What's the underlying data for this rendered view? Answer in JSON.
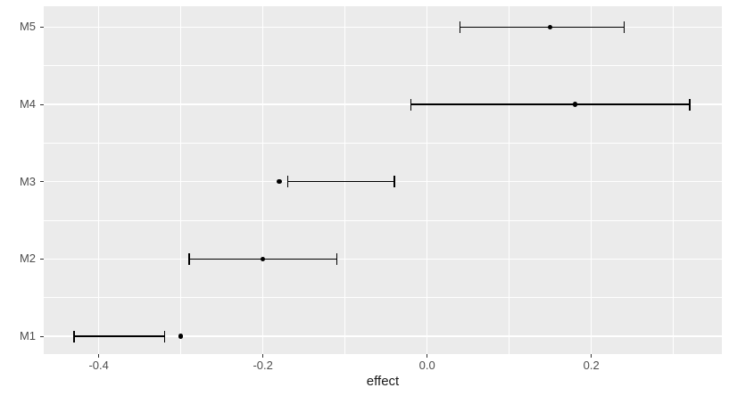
{
  "figure": {
    "background_color": "#FFFFFF",
    "panel_background_color": "#EBEBEB",
    "gridline_color": "#FFFFFF",
    "axis_text_color": "#4D4D4D",
    "axis_title_color": "#1A1A1A",
    "tick_mark_color": "#333333",
    "data_color": "#000000"
  },
  "chart_data": {
    "type": "scatter",
    "subtype": "pointrange-forest-plot",
    "title": "",
    "xlabel": "effect",
    "ylabel": "",
    "grid": "on",
    "legend": "none",
    "categories": [
      "M5",
      "M4",
      "M3",
      "M2",
      "M1"
    ],
    "series": [
      {
        "label": "M5",
        "y": 5,
        "estimate": 0.15,
        "ci_low": 0.04,
        "ci_high": 0.24
      },
      {
        "label": "M4",
        "y": 4,
        "estimate": 0.18,
        "ci_low": -0.02,
        "ci_high": 0.32
      },
      {
        "label": "M3",
        "y": 3,
        "estimate": -0.18,
        "ci_low": -0.17,
        "ci_high": -0.04
      },
      {
        "label": "M2",
        "y": 2,
        "estimate": -0.2,
        "ci_low": -0.29,
        "ci_high": -0.11
      },
      {
        "label": "M1",
        "y": 1,
        "estimate": -0.3,
        "ci_low": -0.43,
        "ci_high": -0.32
      }
    ],
    "x_axis": {
      "ticks": [
        {
          "value": -0.4,
          "label": "-0.4"
        },
        {
          "value": -0.2,
          "label": "-0.2"
        },
        {
          "value": 0.0,
          "label": "0.0"
        },
        {
          "value": 0.2,
          "label": "0.2"
        }
      ],
      "minor_ticks": [
        -0.3,
        -0.1,
        0.1,
        0.3
      ],
      "lim": [
        -0.467,
        0.359
      ]
    },
    "y_axis": {
      "ticks": [
        {
          "value": 1,
          "label": "M1"
        },
        {
          "value": 2,
          "label": "M2"
        },
        {
          "value": 3,
          "label": "M3"
        },
        {
          "value": 4,
          "label": "M4"
        },
        {
          "value": 5,
          "label": "M5"
        }
      ],
      "minor_ticks": [
        1.5,
        2.5,
        3.5,
        4.5
      ],
      "lim": [
        0.77,
        5.27
      ]
    }
  }
}
